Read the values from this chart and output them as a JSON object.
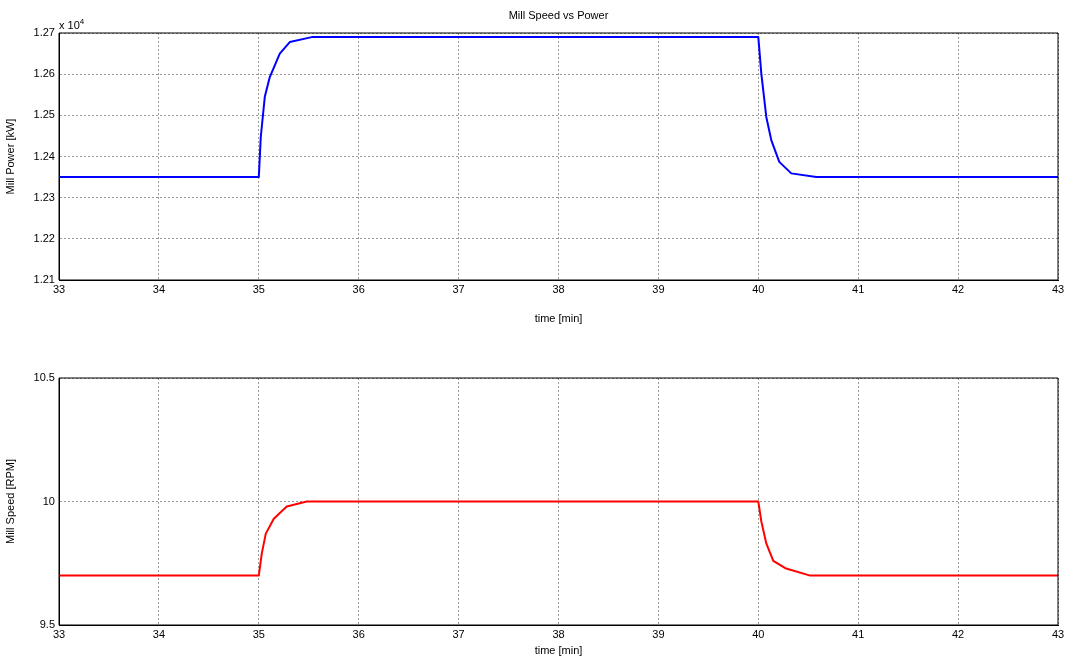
{
  "chart_data": [
    {
      "type": "line",
      "title": "Mill Speed vs Power",
      "xlabel": "time [min]",
      "ylabel": "Mill Power [kW]",
      "annotations": [
        "x 10$^{4}$"
      ],
      "series": [
        {
          "color": "#0000ff",
          "x": [
            33,
            35,
            35.02,
            35.06,
            35.11,
            35.21,
            35.31,
            35.53,
            40,
            40.03,
            40.08,
            40.13,
            40.21,
            40.33,
            40.58,
            43
          ],
          "values": [
            1.235,
            1.235,
            1.2448,
            1.2545,
            1.2593,
            1.265,
            1.2678,
            1.269,
            1.269,
            1.2602,
            1.2496,
            1.244,
            1.2387,
            1.2359,
            1.235,
            1.235
          ]
        }
      ],
      "xlim": [
        33,
        43
      ],
      "xticks": [
        33,
        34,
        35,
        36,
        37,
        38,
        39,
        40,
        41,
        42,
        43
      ],
      "ylim": [
        1.21,
        1.27
      ],
      "yticks": [
        1.21,
        1.22,
        1.23,
        1.24,
        1.25,
        1.26,
        1.27
      ],
      "grid": true,
      "line_style": "solid",
      "marker": "none"
    },
    {
      "type": "line",
      "xlabel": "time [min]",
      "ylabel": "Mill Speed [RPM]",
      "series": [
        {
          "color": "#ff0000",
          "x": [
            33,
            35,
            35.03,
            35.07,
            35.15,
            35.28,
            35.48,
            40,
            40.03,
            40.08,
            40.15,
            40.27,
            40.52,
            43
          ],
          "values": [
            9.7,
            9.7,
            9.79,
            9.87,
            9.93,
            9.98,
            10,
            10,
            9.92,
            9.83,
            9.76,
            9.73,
            9.7,
            9.7
          ]
        }
      ],
      "xlim": [
        33,
        43
      ],
      "xticks": [
        33,
        34,
        35,
        36,
        37,
        38,
        39,
        40,
        41,
        42,
        43
      ],
      "ylim": [
        9.5,
        10.5
      ],
      "yticks": [
        9.5,
        10,
        10.5
      ],
      "grid": true,
      "line_style": "solid",
      "marker": "none"
    }
  ]
}
